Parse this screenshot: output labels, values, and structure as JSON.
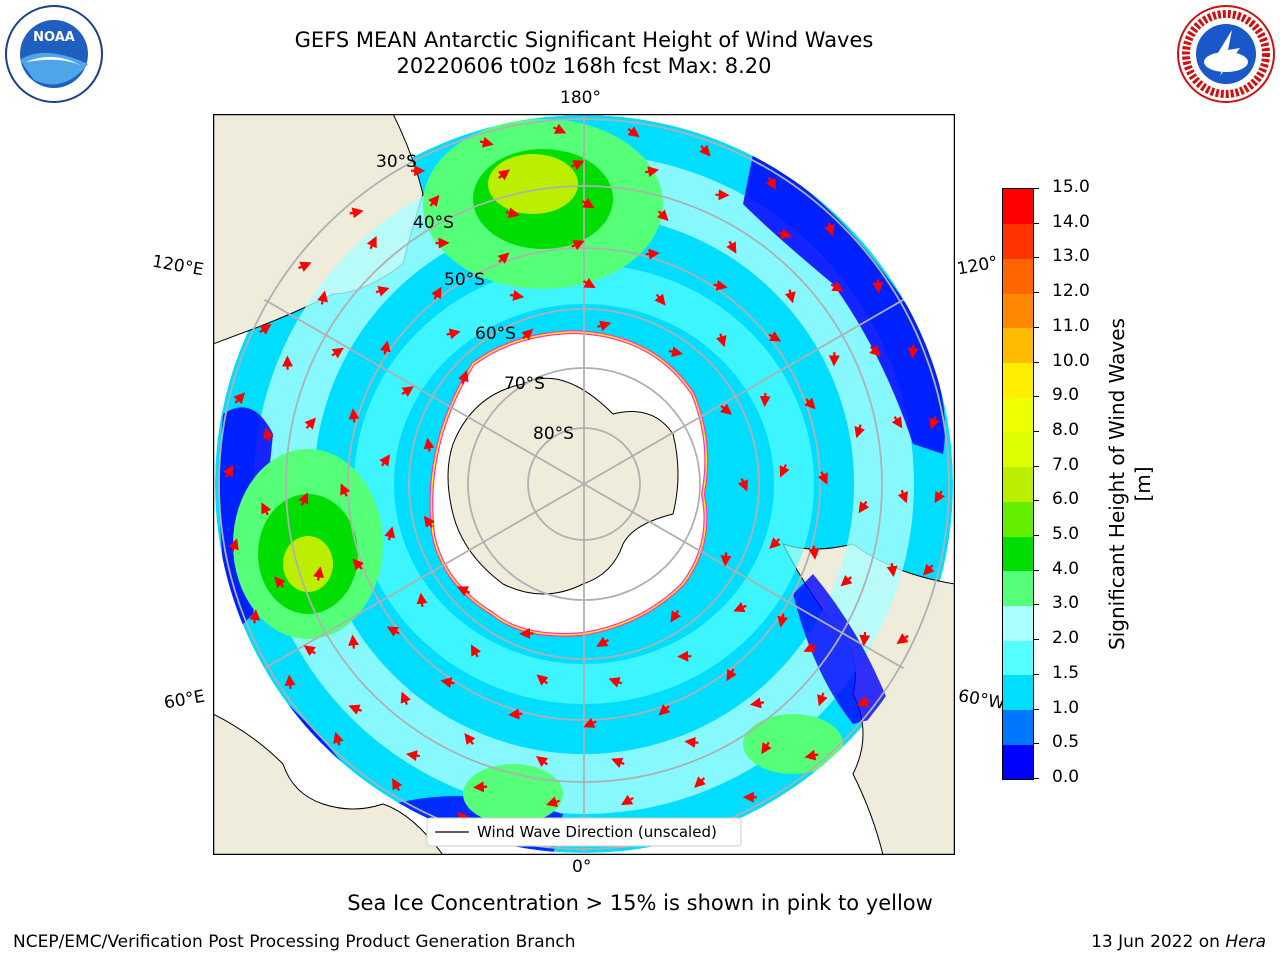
{
  "title_line1": "GEFS MEAN Antarctic Significant Height of Wind Waves",
  "title_line2": "20220606 t00z 168h fcst   Max: 8.20",
  "logos": {
    "noaa_text": "NOAA",
    "noaa_ring": "NATIONAL OCEANIC AND ATMOSPHERIC ADMINISTRATION U.S. DEPARTMENT OF COMMERCE",
    "nws_ring": "NATIONAL WEATHER SERVICE"
  },
  "map": {
    "longitude_labels": [
      "180°",
      "120°E",
      "120°",
      "60°E",
      "60°W",
      "0°"
    ],
    "latitude_labels": [
      "30°S",
      "40°S",
      "50°S",
      "60°S",
      "70°S",
      "80°S"
    ],
    "legend_label": "Wind Wave Direction (unscaled)",
    "colors": {
      "land": "#efecdc",
      "ice": "#ffffff",
      "ice_edge": [
        "#ff33cc",
        "#ffee00"
      ],
      "arrow": "#ff0000",
      "grid": "#b0b0b0"
    }
  },
  "colorbar": {
    "label": "Significant Height of Wind Waves [m]",
    "tick_labels": [
      "0.0",
      "0.5",
      "1.0",
      "1.5",
      "2.0",
      "3.0",
      "4.0",
      "5.0",
      "6.0",
      "7.0",
      "8.0",
      "9.0",
      "10.0",
      "11.0",
      "12.0",
      "13.0",
      "14.0",
      "15.0"
    ],
    "colors": [
      "#0000ff",
      "#0077ff",
      "#00ddff",
      "#55ffff",
      "#aaffff",
      "#55ff77",
      "#00dd00",
      "#66ee00",
      "#bbee00",
      "#ddff00",
      "#eeff00",
      "#ffee00",
      "#ffbb00",
      "#ff8800",
      "#ff6600",
      "#ff3300",
      "#ff0000"
    ]
  },
  "note": "Sea Ice Concentration > 15% is shown in pink to yellow",
  "footer_left": "NCEP/EMC/Verification Post Processing Product Generation Branch",
  "footer_right_date": "13 Jun 2022 on ",
  "footer_right_machine": "Hera"
}
